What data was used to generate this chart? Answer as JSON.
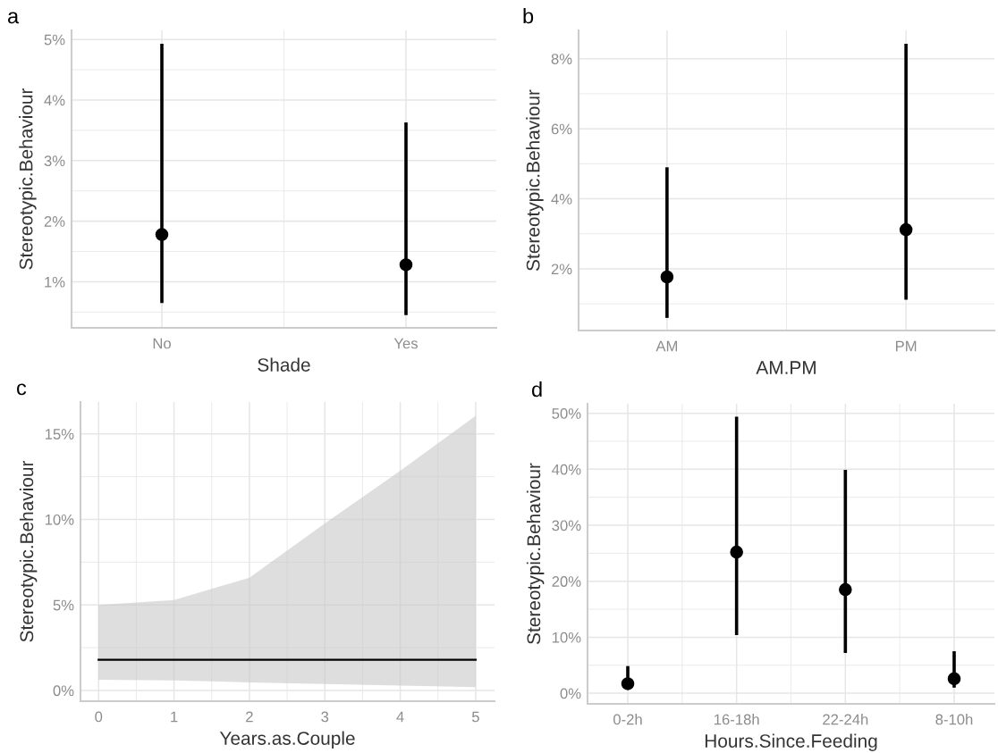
{
  "chart_data": [
    {
      "type": "scatter",
      "title": "a",
      "xlabel": "Shade",
      "ylabel": "Stereotypic.Behaviour",
      "categories": [
        "No",
        "Yes"
      ],
      "series": [
        {
          "color": "#000000",
          "values": [
            1.78,
            1.28
          ],
          "errors": [
            [
              0.65,
              4.93
            ],
            [
              0.45,
              3.63
            ]
          ]
        }
      ],
      "ylim": [
        0.24,
        5.15
      ],
      "yticks": [
        {
          "value": 0.5,
          "label": null
        },
        {
          "value": 1,
          "label": "1%"
        },
        {
          "value": 1.5,
          "label": null
        },
        {
          "value": 2,
          "label": "2%"
        },
        {
          "value": 2.5,
          "label": null
        },
        {
          "value": 3,
          "label": "3%"
        },
        {
          "value": 3.5,
          "label": null
        },
        {
          "value": 4,
          "label": "4%"
        },
        {
          "value": 4.5,
          "label": null
        },
        {
          "value": 5,
          "label": "5%"
        }
      ],
      "grid": true,
      "marker": "circle"
    },
    {
      "type": "scatter",
      "title": "b",
      "xlabel": "AM.PM",
      "ylabel": "Stereotypic.Behaviour",
      "categories": [
        "AM",
        "PM"
      ],
      "series": [
        {
          "color": "#000000",
          "values": [
            1.77,
            3.12
          ],
          "errors": [
            [
              0.6,
              4.9
            ],
            [
              1.12,
              8.43
            ]
          ]
        }
      ],
      "ylim": [
        0.24,
        8.81
      ],
      "yticks": [
        {
          "value": 1,
          "label": null
        },
        {
          "value": 2,
          "label": "2%"
        },
        {
          "value": 3,
          "label": null
        },
        {
          "value": 4,
          "label": "4%"
        },
        {
          "value": 5,
          "label": null
        },
        {
          "value": 6,
          "label": "6%"
        },
        {
          "value": 7,
          "label": null
        },
        {
          "value": 8,
          "label": "8%"
        }
      ],
      "grid": true,
      "marker": "circle"
    },
    {
      "type": "line",
      "title": "c",
      "xlabel": "Years.as.Couple",
      "ylabel": "Stereotypic.Behaviour",
      "x": [
        0,
        1,
        2,
        3,
        4,
        5
      ],
      "series": [
        {
          "color": "#000000",
          "values": [
            1.79,
            1.79,
            1.79,
            1.79,
            1.79,
            1.79
          ],
          "lower": [
            0.62,
            0.58,
            0.47,
            0.37,
            0.28,
            0.19
          ],
          "upper": [
            5.0,
            5.28,
            6.59,
            9.77,
            12.85,
            16.06
          ]
        }
      ],
      "xlim": [
        -0.24,
        5.25
      ],
      "xticks": [
        0,
        {
          "value": 0.5,
          "label": null
        },
        1,
        {
          "value": 1.5,
          "label": null
        },
        2,
        {
          "value": 2.5,
          "label": null
        },
        3,
        {
          "value": 3.5,
          "label": null
        },
        4,
        {
          "value": 4.5,
          "label": null
        },
        5
      ],
      "ylim": [
        -0.63,
        16.87
      ],
      "yticks": [
        {
          "value": 0,
          "label": "0%"
        },
        {
          "value": 2.5,
          "label": null
        },
        {
          "value": 5,
          "label": "5%"
        },
        {
          "value": 7.5,
          "label": null
        },
        {
          "value": 10,
          "label": "10%"
        },
        {
          "value": 12.5,
          "label": null
        },
        {
          "value": 15,
          "label": "15%"
        }
      ],
      "grid": true,
      "marker": "none"
    },
    {
      "type": "scatter",
      "title": "d",
      "xlabel": "Hours.Since.Feeding",
      "ylabel": "Stereotypic.Behaviour",
      "categories": [
        "0-2h",
        "16-18h",
        "22-24h",
        "8-10h"
      ],
      "series": [
        {
          "color": "#000000",
          "values": [
            1.7,
            25.2,
            18.5,
            2.6
          ],
          "errors": [
            [
              0.7,
              4.85
            ],
            [
              10.4,
              49.4
            ],
            [
              7.2,
              39.9
            ],
            [
              1.0,
              7.5
            ]
          ]
        }
      ],
      "ylim": [
        -1.9,
        51.7
      ],
      "yticks": [
        {
          "value": 0,
          "label": "0%"
        },
        {
          "value": 5,
          "label": null
        },
        {
          "value": 10,
          "label": "10%"
        },
        {
          "value": 15,
          "label": null
        },
        {
          "value": 20,
          "label": "20%"
        },
        {
          "value": 25,
          "label": null
        },
        {
          "value": 30,
          "label": "30%"
        },
        {
          "value": 35,
          "label": null
        },
        {
          "value": 40,
          "label": "40%"
        },
        {
          "value": 45,
          "label": null
        },
        {
          "value": 50,
          "label": "50%"
        }
      ],
      "grid": true,
      "marker": "circle"
    }
  ]
}
